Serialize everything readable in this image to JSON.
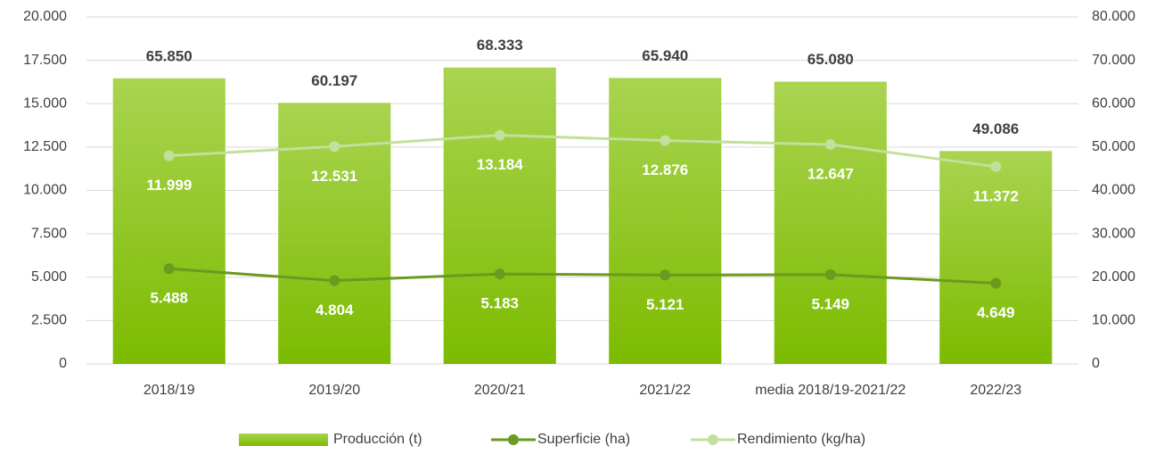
{
  "chart_data": {
    "type": "bar_line",
    "categories": [
      "2018/19",
      "2019/20",
      "2020/21",
      "2021/22",
      "media 2018/19-2021/22",
      "2022/23"
    ],
    "series": [
      {
        "name": "Producción (t)",
        "type": "bar",
        "axis": "y2",
        "color": "#8dc21f",
        "values": [
          65850,
          60197,
          68333,
          65940,
          65080,
          49086
        ],
        "value_labels": [
          "65.850",
          "60.197",
          "68.333",
          "65.940",
          "65.080",
          "49.086"
        ]
      },
      {
        "name": "Superficie (ha)",
        "type": "line",
        "axis": "y",
        "color": "#6a9a1f",
        "values": [
          5488,
          4804,
          5183,
          5121,
          5149,
          4649
        ],
        "value_labels": [
          "5.488",
          "4.804",
          "5.183",
          "5.121",
          "5.149",
          "4.649"
        ]
      },
      {
        "name": "Rendimiento (kg/ha)",
        "type": "line",
        "axis": "y",
        "color": "#c3df9c",
        "values": [
          11999,
          12531,
          13184,
          12876,
          12647,
          11372
        ],
        "value_labels": [
          "11.999",
          "12.531",
          "13.184",
          "12.876",
          "12.647",
          "11.372"
        ]
      }
    ],
    "ylim": [
      0,
      20000
    ],
    "yticks": [
      0,
      {
        "value": 2500,
        "label": "2.500"
      },
      {
        "value": 5000,
        "label": "5.000"
      },
      {
        "value": 7500,
        "label": "7.500"
      },
      {
        "value": 10000,
        "label": "10.000"
      },
      {
        "value": 12500,
        "label": "12.500"
      },
      {
        "value": 15000,
        "label": "15.000"
      },
      {
        "value": 17500,
        "label": "17.500"
      },
      {
        "value": 20000,
        "label": "20.000"
      }
    ],
    "y2lim": [
      0,
      80000
    ],
    "y2ticks": [
      0,
      {
        "value": 10000,
        "label": "10.000"
      },
      {
        "value": 20000,
        "label": "20.000"
      },
      {
        "value": 30000,
        "label": "30.000"
      },
      {
        "value": 40000,
        "label": "40.000"
      },
      {
        "value": 50000,
        "label": "50.000"
      },
      {
        "value": 60000,
        "label": "60.000"
      },
      {
        "value": 70000,
        "label": "70.000"
      },
      {
        "value": 80000,
        "label": "80.000"
      }
    ],
    "grid": true,
    "legend": "bottom"
  }
}
